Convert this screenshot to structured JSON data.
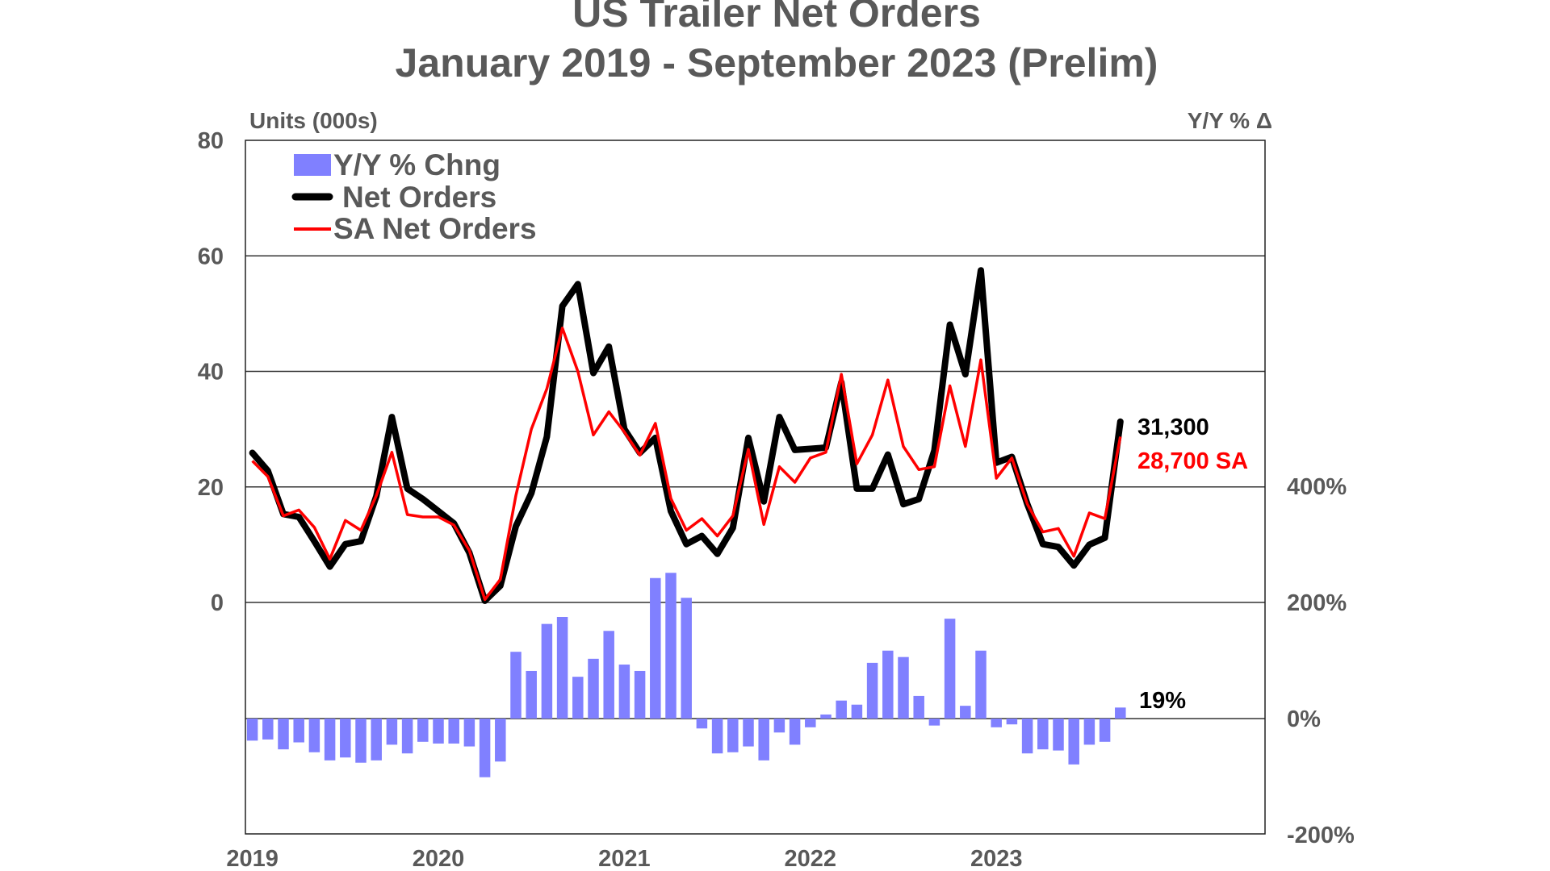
{
  "chart_data": {
    "type": "bar+line",
    "title": "US Trailer Net Orders",
    "subtitle": "January 2019 - September 2023 (Prelim)",
    "ylabel_left": "Units (000s)",
    "ylabel_right": "Y/Y % Δ",
    "ylim_left": [
      0,
      80
    ],
    "left_ticks": [
      "80",
      "60",
      "40",
      "20",
      "0"
    ],
    "ylim_right": [
      -200,
      400
    ],
    "right_ticks": [
      "400%",
      "200%",
      "0%",
      "-200%"
    ],
    "x_ticks": [
      "2019",
      "2020",
      "2021",
      "2022",
      "2023"
    ],
    "x_start": "2019-01",
    "x_end": "2023-09",
    "grid": true,
    "legend_position": "top-left",
    "colors": {
      "yoy": "#8080FF",
      "net": "#000000",
      "sa": "#FF0000"
    },
    "series": [
      {
        "name": "Y/Y % Chng",
        "type": "bar",
        "axis": "right",
        "unit": "%",
        "values": [
          -38,
          -36,
          -53,
          -41,
          -58,
          -72,
          -67,
          -76,
          -72,
          -45,
          -60,
          -40,
          -43,
          -43,
          -48,
          -101,
          -74,
          115,
          82,
          163,
          175,
          72,
          103,
          151,
          93,
          82,
          242,
          251,
          208,
          -17,
          -60,
          -58,
          -48,
          -72,
          -24,
          -45,
          -15,
          7,
          31,
          24,
          96,
          117,
          106,
          39,
          -12,
          172,
          22,
          117,
          -15,
          -10,
          -60,
          -53,
          -55,
          -79,
          -45,
          -40,
          19
        ]
      },
      {
        "name": "Net Orders",
        "type": "line",
        "axis": "left",
        "unit": "000s",
        "values": [
          25.9,
          22.8,
          15.3,
          14.8,
          10.6,
          6.2,
          10.1,
          10.6,
          18.4,
          32.1,
          19.7,
          17.9,
          15.8,
          13.7,
          8.6,
          0.3,
          2.9,
          13.2,
          18.9,
          28.7,
          51.3,
          55.1,
          39.7,
          44.3,
          30.0,
          25.9,
          28.5,
          15.8,
          10.1,
          11.5,
          8.4,
          12.9,
          28.5,
          17.5,
          32.1,
          26.4,
          26.6,
          26.8,
          38.1,
          19.7,
          19.7,
          25.6,
          17.0,
          17.9,
          26.3,
          48.1,
          39.5,
          57.5,
          24.2,
          25.2,
          17.0,
          10.1,
          9.6,
          6.4,
          10.0,
          11.2,
          31.3
        ]
      },
      {
        "name": "SA Net Orders",
        "type": "line",
        "axis": "left",
        "unit": "000s",
        "values": [
          24.5,
          21.8,
          15.0,
          16.0,
          13.0,
          7.5,
          14.2,
          12.5,
          18.5,
          26.0,
          15.2,
          14.8,
          14.8,
          13.4,
          9.0,
          0.5,
          4.0,
          18.5,
          30.0,
          37.0,
          47.5,
          40.0,
          29.0,
          33.0,
          29.5,
          25.5,
          31.0,
          18.0,
          12.5,
          14.5,
          11.5,
          15.0,
          26.5,
          13.5,
          23.5,
          20.8,
          25.0,
          26.0,
          39.5,
          24.0,
          29.0,
          38.5,
          27.0,
          23.0,
          23.5,
          37.5,
          27.0,
          42.0,
          21.5,
          25.0,
          17.0,
          12.2,
          12.8,
          8.0,
          15.5,
          14.5,
          28.7
        ]
      }
    ],
    "annotations": {
      "net_last": "31,300",
      "sa_last": "28,700 SA",
      "yoy_last": "19%"
    }
  }
}
